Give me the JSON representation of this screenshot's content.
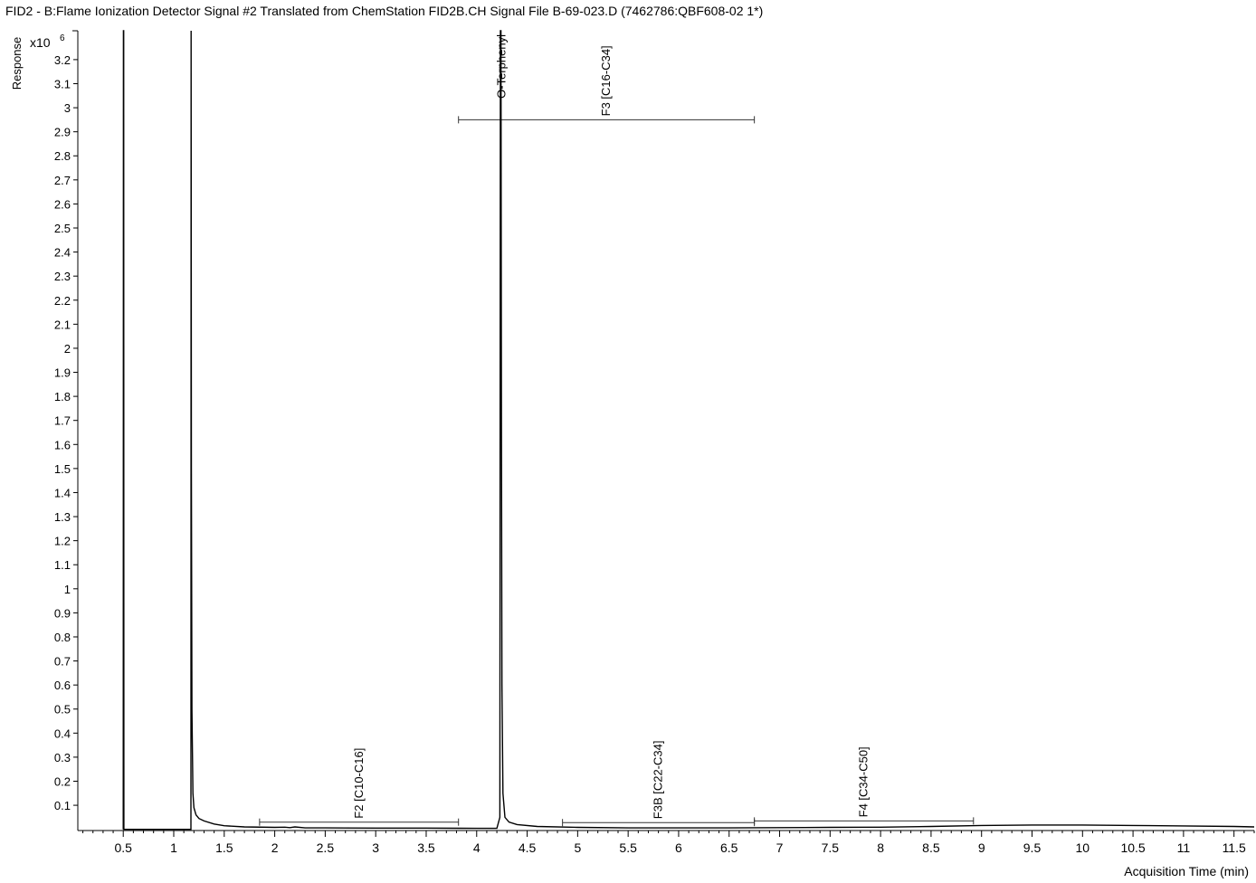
{
  "chart_data": {
    "type": "line",
    "title": "FID2 - B:Flame Ionization Detector Signal #2 Translated from ChemStation FID2B.CH Signal File B-69-023.D (7462786:QBF608-02 1*)",
    "xlabel": "Acquisition Time (min)",
    "ylabel": "Response",
    "y_multiplier": "x10",
    "y_multiplier_exp": "6",
    "xlim": [
      0.05,
      11.7
    ],
    "ylim": [
      -0.005,
      3.32
    ],
    "x_ticks": [
      0.5,
      1,
      1.5,
      2,
      2.5,
      3,
      3.5,
      4,
      4.5,
      5,
      5.5,
      6,
      6.5,
      7,
      7.5,
      8,
      8.5,
      9,
      9.5,
      10,
      10.5,
      11,
      11.5
    ],
    "x_tick_labels": [
      "0.5",
      "1",
      "1.5",
      "2",
      "2.5",
      "3",
      "3.5",
      "4",
      "4.5",
      "5",
      "5.5",
      "6",
      "6.5",
      "7",
      "7.5",
      "8",
      "8.5",
      "9",
      "9.5",
      "10",
      "10.5",
      "11",
      "11.5"
    ],
    "y_ticks": [
      0.1,
      0.2,
      0.3,
      0.4,
      0.5,
      0.6,
      0.7,
      0.8,
      0.9,
      1,
      1.1,
      1.2,
      1.3,
      1.4,
      1.5,
      1.6,
      1.7,
      1.8,
      1.9,
      2,
      2.1,
      2.2,
      2.3,
      2.4,
      2.5,
      2.6,
      2.7,
      2.8,
      2.9,
      3,
      3.1,
      3.2
    ],
    "y_tick_labels": [
      "0.1",
      "0.2",
      "0.3",
      "0.4",
      "0.5",
      "0.6",
      "0.7",
      "0.8",
      "0.9",
      "1",
      "1.1",
      "1.2",
      "1.3",
      "1.4",
      "1.5",
      "1.6",
      "1.7",
      "1.8",
      "1.9",
      "2",
      "2.1",
      "2.2",
      "2.3",
      "2.4",
      "2.5",
      "2.6",
      "2.7",
      "2.8",
      "2.9",
      "3",
      "3.1",
      "3.2"
    ],
    "series": [
      {
        "x": [
          0.5,
          0.502,
          0.504,
          0.506,
          0.51,
          0.55,
          1.0,
          1.17,
          1.172,
          1.175,
          1.18,
          1.19,
          1.2,
          1.22,
          1.25,
          1.3,
          1.4,
          1.5,
          1.7,
          2.0,
          2.1,
          2.15,
          2.2,
          2.3,
          2.5,
          3.0,
          3.5,
          4.0,
          4.2,
          4.23,
          4.235,
          4.24,
          4.245,
          4.25,
          4.26,
          4.28,
          4.32,
          4.4,
          4.6,
          5.0,
          5.5,
          6.0,
          6.5,
          7.0,
          7.5,
          8.0,
          8.5,
          9.0,
          9.5,
          10.0,
          10.5,
          11.0,
          11.5,
          11.7
        ],
        "y": [
          0.0,
          3.32,
          3.32,
          0.0,
          0.0,
          0.0,
          0.0,
          0.0,
          3.32,
          1.5,
          0.5,
          0.15,
          0.09,
          0.06,
          0.045,
          0.035,
          0.022,
          0.015,
          0.01,
          0.008,
          0.009,
          0.007,
          0.01,
          0.006,
          0.006,
          0.005,
          0.005,
          0.004,
          0.004,
          0.05,
          3.32,
          3.32,
          1.8,
          0.6,
          0.15,
          0.05,
          0.03,
          0.02,
          0.012,
          0.008,
          0.006,
          0.006,
          0.006,
          0.007,
          0.008,
          0.009,
          0.012,
          0.016,
          0.018,
          0.018,
          0.016,
          0.014,
          0.012,
          0.01
        ]
      }
    ],
    "peak_labels": [
      {
        "text": "O-Terphenyl",
        "x": 4.24,
        "y": 3.32
      }
    ],
    "ranges": [
      {
        "text": "F3 [C16-C34]",
        "x1": 3.82,
        "x2": 6.75,
        "y": 2.95
      },
      {
        "text": "F2 [C10-C16]",
        "x1": 1.85,
        "x2": 3.82,
        "y": 0.03
      },
      {
        "text": "F3B [C22-C34]",
        "x1": 4.85,
        "x2": 6.75,
        "y": 0.028
      },
      {
        "text": "F4 [C34-C50]",
        "x1": 6.75,
        "x2": 8.92,
        "y": 0.035
      }
    ],
    "grid": false,
    "legend": "none"
  }
}
